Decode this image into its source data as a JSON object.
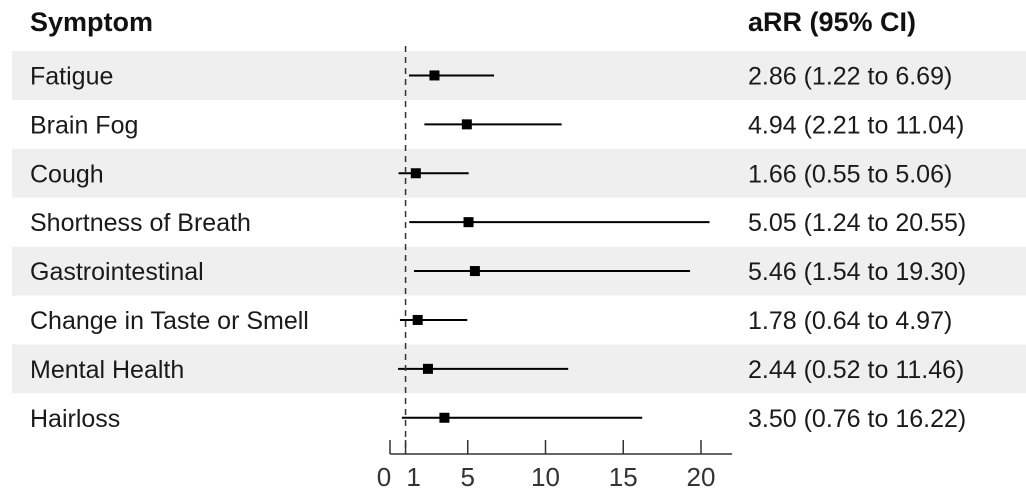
{
  "headers": {
    "symptom": "Symptom",
    "estimate": "aRR (95% CI)"
  },
  "colors": {
    "stripe": "#efefef",
    "background": "#ffffff",
    "mark": "#000000",
    "text": "#1a1a1a"
  },
  "chart_data": {
    "type": "forest",
    "reference_line": 1,
    "reference_style": "dashed",
    "xlim": [
      0,
      22
    ],
    "xticks": [
      0,
      1,
      5,
      10,
      15,
      20
    ],
    "xtick_labels": [
      "0",
      "1",
      "5",
      "10",
      "15",
      "20"
    ],
    "rows": [
      {
        "label": "Fatigue",
        "estimate": 2.86,
        "lower": 1.22,
        "upper": 6.69,
        "text": "2.86 (1.22 to 6.69)"
      },
      {
        "label": "Brain Fog",
        "estimate": 4.94,
        "lower": 2.21,
        "upper": 11.04,
        "text": "4.94 (2.21 to 11.04)"
      },
      {
        "label": "Cough",
        "estimate": 1.66,
        "lower": 0.55,
        "upper": 5.06,
        "text": "1.66 (0.55 to 5.06)"
      },
      {
        "label": "Shortness of Breath",
        "estimate": 5.05,
        "lower": 1.24,
        "upper": 20.55,
        "text": "5.05 (1.24 to 20.55)"
      },
      {
        "label": "Gastrointestinal",
        "estimate": 5.46,
        "lower": 1.54,
        "upper": 19.3,
        "text": "5.46 (1.54 to 19.30)"
      },
      {
        "label": "Change in Taste or Smell",
        "estimate": 1.78,
        "lower": 0.64,
        "upper": 4.97,
        "text": "1.78 (0.64 to 4.97)"
      },
      {
        "label": "Mental Health",
        "estimate": 2.44,
        "lower": 0.52,
        "upper": 11.46,
        "text": "2.44 (0.52 to 11.46)"
      },
      {
        "label": "Hairloss",
        "estimate": 3.5,
        "lower": 0.76,
        "upper": 16.22,
        "text": "3.50 (0.76 to 16.22)"
      }
    ]
  }
}
